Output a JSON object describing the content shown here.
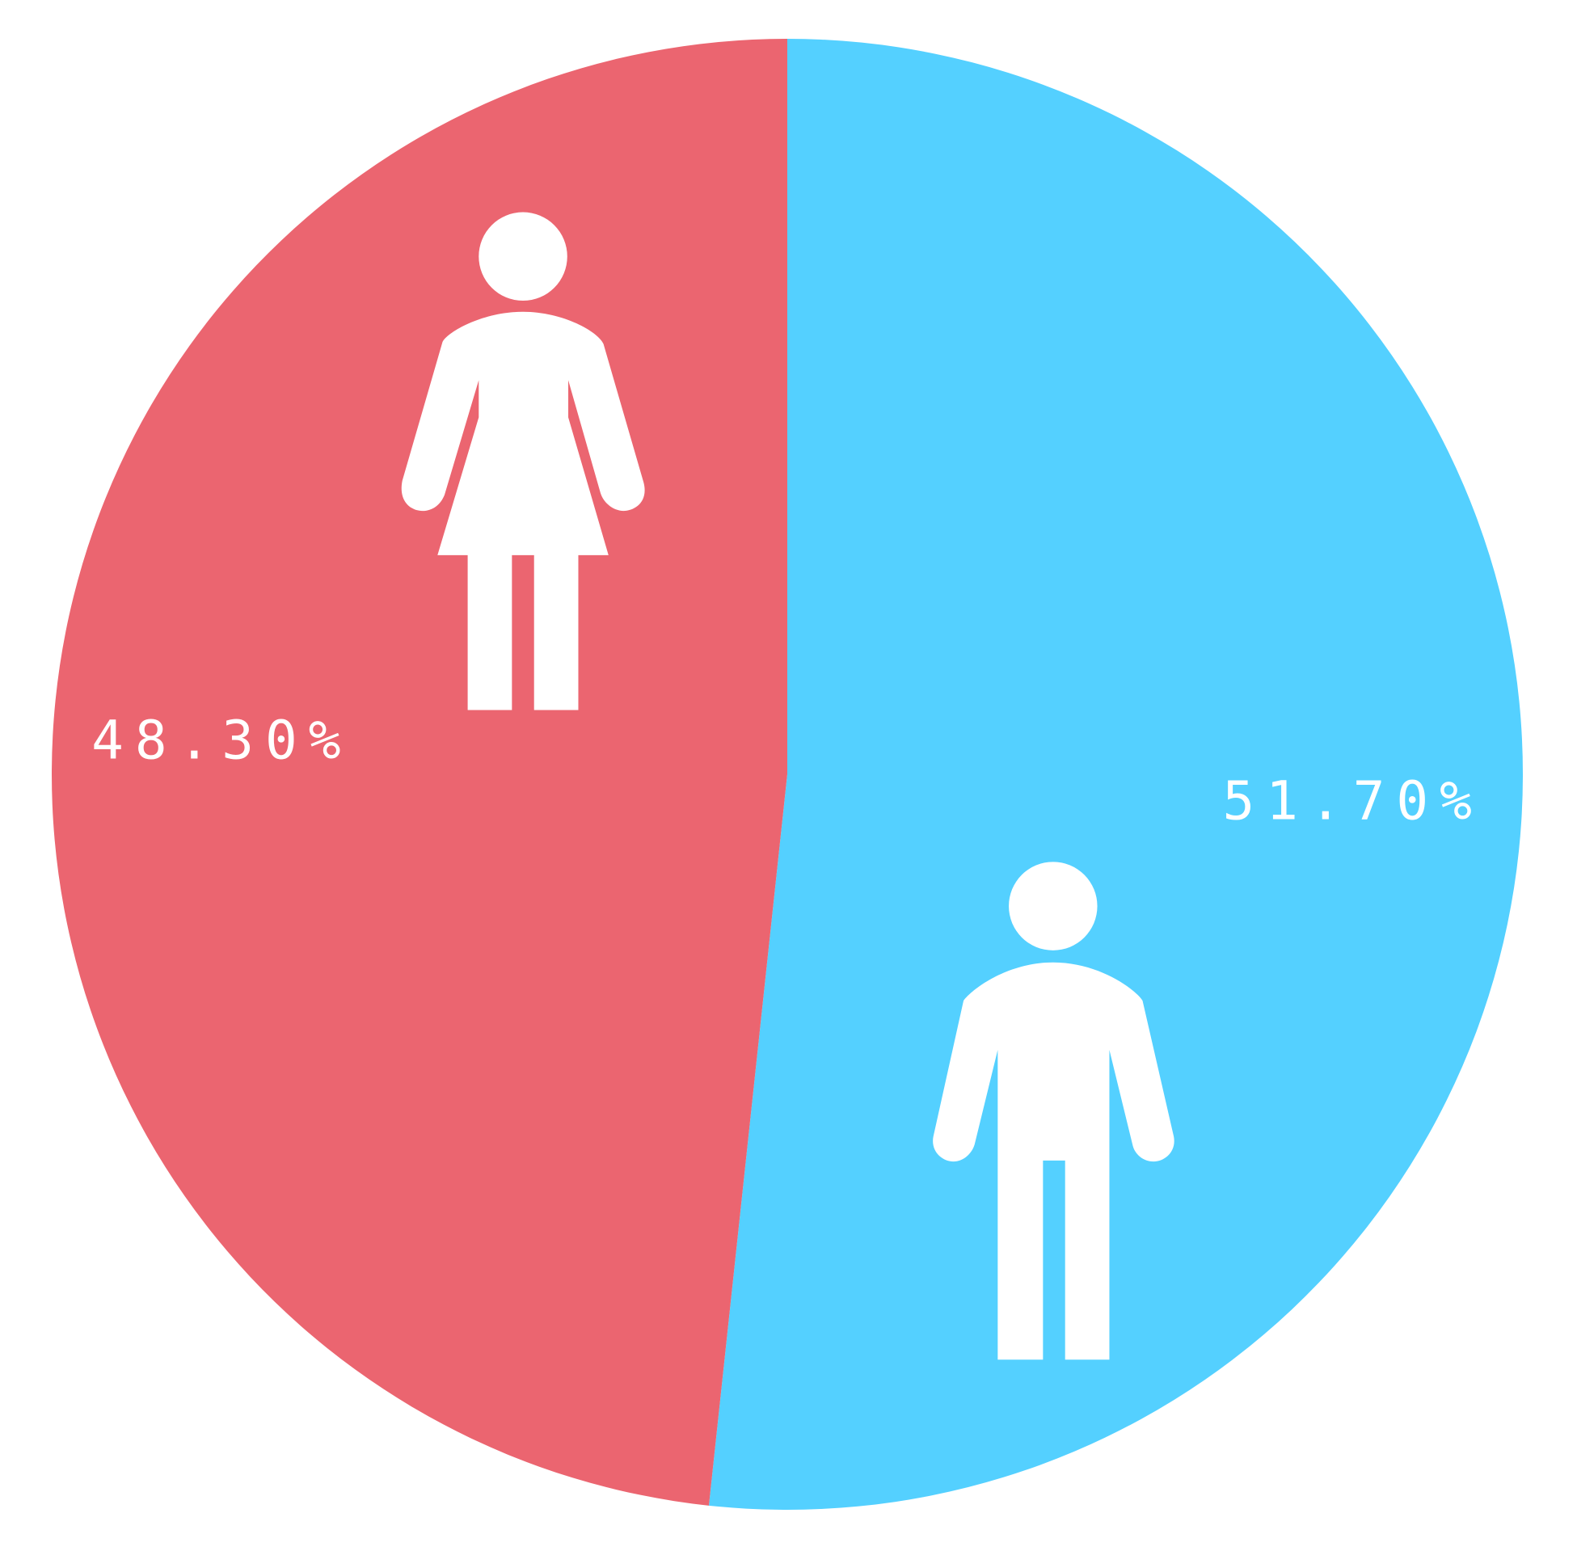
{
  "chart_data": {
    "type": "pie",
    "values": [
      51.7,
      48.3
    ],
    "value_labels": [
      "51.70%",
      "48.30%"
    ],
    "colors": [
      "#54d0ff",
      "#eb6570"
    ]
  }
}
